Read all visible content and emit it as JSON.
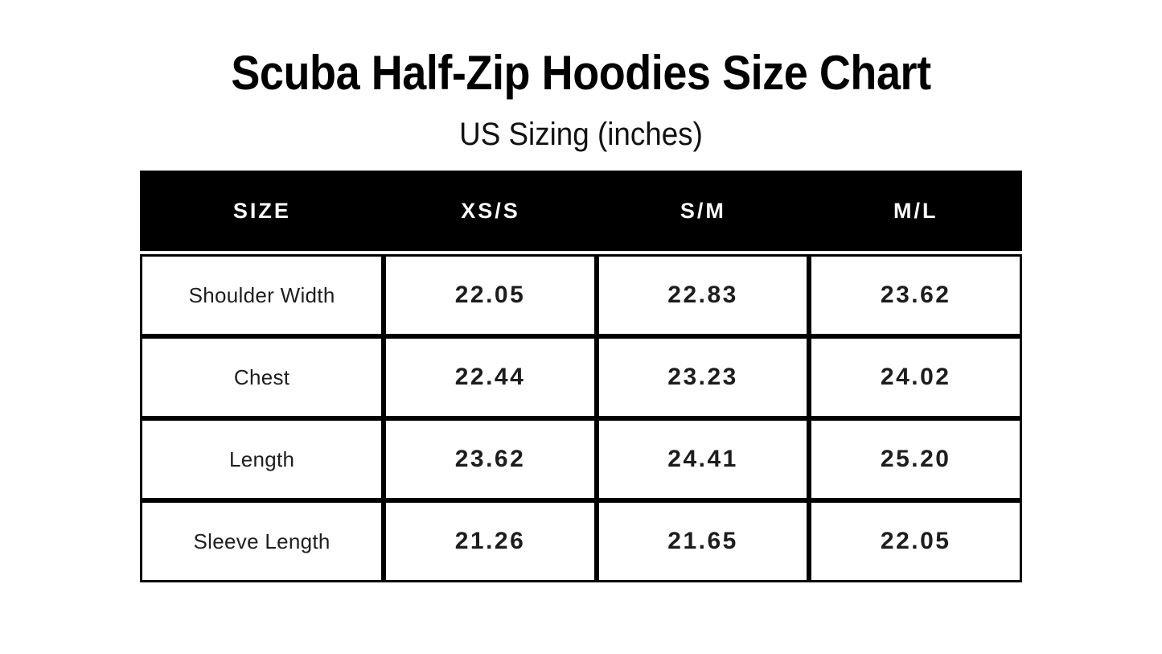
{
  "chart_data": {
    "type": "table",
    "title": "Scuba Half-Zip Hoodies Size Chart",
    "subtitle": "US Sizing (inches)",
    "units": "inches",
    "columns": [
      "SIZE",
      "XS/S",
      "S/M",
      "M/L"
    ],
    "rows": [
      {
        "label": "Shoulder Width",
        "values": [
          "22.05",
          "22.83",
          "23.62"
        ]
      },
      {
        "label": "Chest",
        "values": [
          "22.44",
          "23.23",
          "24.02"
        ]
      },
      {
        "label": "Length",
        "values": [
          "23.62",
          "24.41",
          "25.20"
        ]
      },
      {
        "label": "Sleeve Length",
        "values": [
          "21.26",
          "21.65",
          "22.05"
        ]
      }
    ],
    "layout": {
      "legend": "none",
      "grid": "on",
      "header_position": "top"
    }
  },
  "colors": {
    "background": "#ffffff",
    "header_bg": "#000000",
    "header_text": "#ffffff",
    "border": "#000000",
    "body_text": "#1d1d1d",
    "title_text": "#000000"
  }
}
